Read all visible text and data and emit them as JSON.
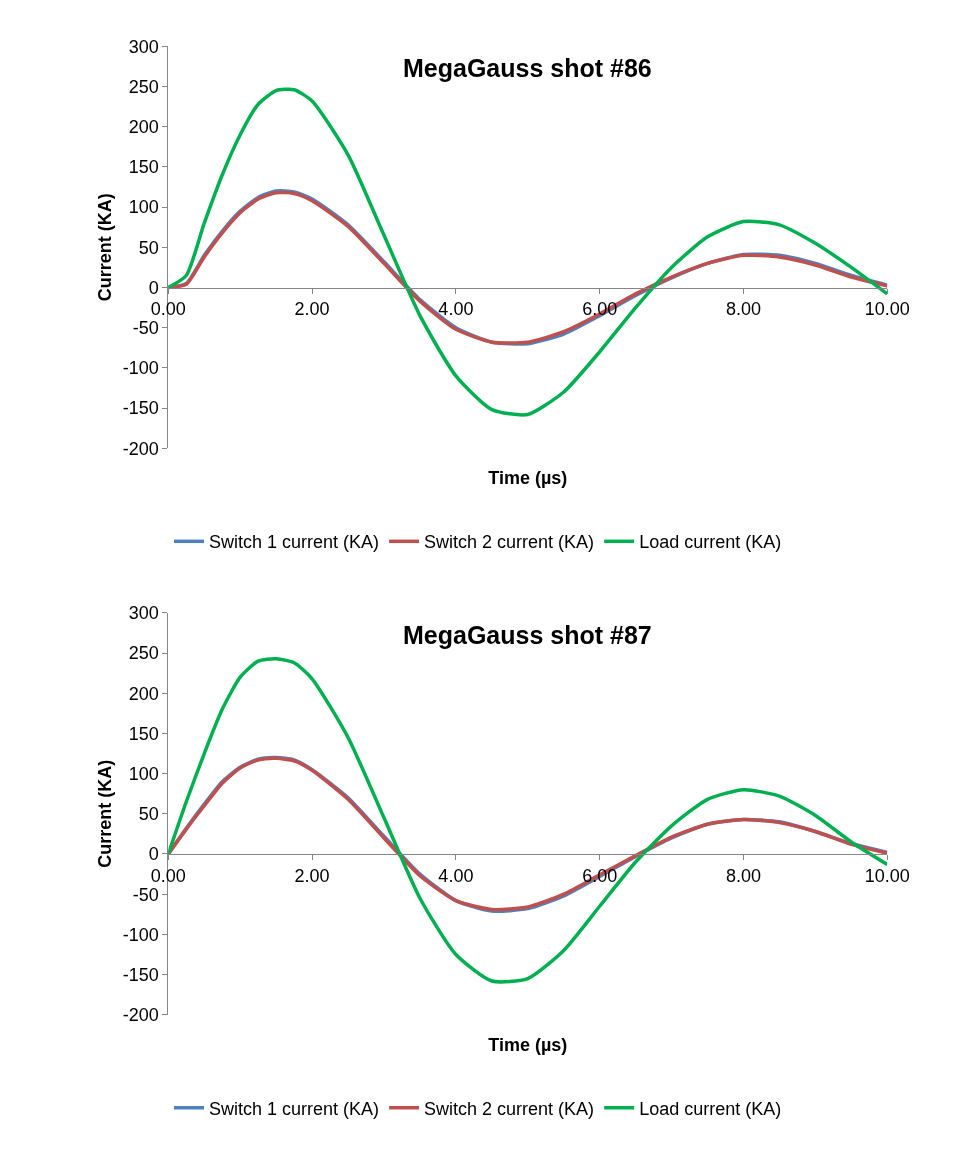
{
  "chart_data": [
    {
      "type": "line",
      "title": "MegaGauss shot #86",
      "xlabel": "Time (µs)",
      "ylabel": "Current (KA)",
      "x": [
        0,
        0.25,
        0.5,
        0.75,
        1,
        1.25,
        1.5,
        1.75,
        2,
        2.5,
        3,
        3.5,
        4,
        4.5,
        5,
        5.5,
        6,
        6.5,
        7,
        7.5,
        8,
        8.5,
        9,
        9.5,
        10
      ],
      "xlim": [
        0,
        10
      ],
      "xticks": [
        {
          "value": 0,
          "label": "0.00"
        },
        {
          "value": 2,
          "label": "2.00"
        },
        {
          "value": 4,
          "label": "4.00"
        },
        {
          "value": 6,
          "label": "6.00"
        },
        {
          "value": 8,
          "label": "8.00"
        },
        {
          "value": 10,
          "label": "10.00"
        }
      ],
      "ylim": [
        -200,
        300
      ],
      "yticks": [
        -200,
        -150,
        -100,
        -50,
        0,
        50,
        100,
        150,
        200,
        250,
        300
      ],
      "legend": "bottom",
      "marker": "none",
      "line_style": "solid",
      "series": [
        {
          "name": "Switch 1 current (KA)",
          "color": "#4f81bd",
          "values": [
            0,
            5,
            40,
            70,
            95,
            112,
            120,
            119,
            110,
            78,
            32,
            -15,
            -50,
            -68,
            -70,
            -58,
            -35,
            -10,
            12,
            30,
            41,
            40,
            30,
            15,
            3
          ]
        },
        {
          "name": "Switch 2 current (KA)",
          "color": "#c0504d",
          "values": [
            0,
            4,
            38,
            68,
            93,
            110,
            118,
            117,
            108,
            76,
            30,
            -17,
            -52,
            -68,
            -68,
            -55,
            -33,
            -8,
            13,
            30,
            40,
            38,
            28,
            13,
            2
          ]
        },
        {
          "name": "Load current (KA)",
          "color": "#00b050",
          "values": [
            0,
            15,
            80,
            140,
            190,
            228,
            245,
            246,
            232,
            165,
            65,
            -35,
            -110,
            -152,
            -158,
            -130,
            -80,
            -25,
            25,
            63,
            82,
            78,
            55,
            25,
            -8
          ]
        }
      ]
    },
    {
      "type": "line",
      "title": "MegaGauss shot #87",
      "xlabel": "Time (µs)",
      "ylabel": "Current (KA)",
      "x": [
        0,
        0.25,
        0.5,
        0.75,
        1,
        1.25,
        1.5,
        1.75,
        2,
        2.5,
        3,
        3.5,
        4,
        4.5,
        5,
        5.5,
        6,
        6.5,
        7,
        7.5,
        8,
        8.5,
        9,
        9.5,
        10
      ],
      "xlim": [
        0,
        10
      ],
      "xticks": [
        {
          "value": 0,
          "label": "0.00"
        },
        {
          "value": 2,
          "label": "2.00"
        },
        {
          "value": 4,
          "label": "4.00"
        },
        {
          "value": 6,
          "label": "6.00"
        },
        {
          "value": 8,
          "label": "8.00"
        },
        {
          "value": 10,
          "label": "10.00"
        }
      ],
      "ylim": [
        -200,
        300
      ],
      "yticks": [
        -200,
        -150,
        -100,
        -50,
        0,
        50,
        100,
        150,
        200,
        250,
        300
      ],
      "legend": "bottom",
      "marker": "none",
      "line_style": "solid",
      "series": [
        {
          "name": "Switch 1 current (KA)",
          "color": "#4f81bd",
          "values": [
            0,
            32,
            62,
            90,
            108,
            118,
            120,
            117,
            105,
            70,
            22,
            -25,
            -58,
            -71,
            -68,
            -52,
            -28,
            -3,
            20,
            37,
            43,
            40,
            28,
            13,
            2
          ]
        },
        {
          "name": "Switch 2 current (KA)",
          "color": "#c0504d",
          "values": [
            0,
            31,
            60,
            88,
            107,
            117,
            119,
            116,
            104,
            68,
            20,
            -27,
            -58,
            -69,
            -66,
            -50,
            -26,
            -2,
            21,
            37,
            43,
            39,
            28,
            12,
            1
          ]
        },
        {
          "name": "Load current (KA)",
          "color": "#00b050",
          "values": [
            0,
            65,
            125,
            180,
            220,
            240,
            243,
            238,
            218,
            145,
            45,
            -55,
            -125,
            -158,
            -155,
            -120,
            -65,
            -10,
            35,
            68,
            80,
            72,
            48,
            15,
            -13
          ]
        }
      ]
    }
  ]
}
